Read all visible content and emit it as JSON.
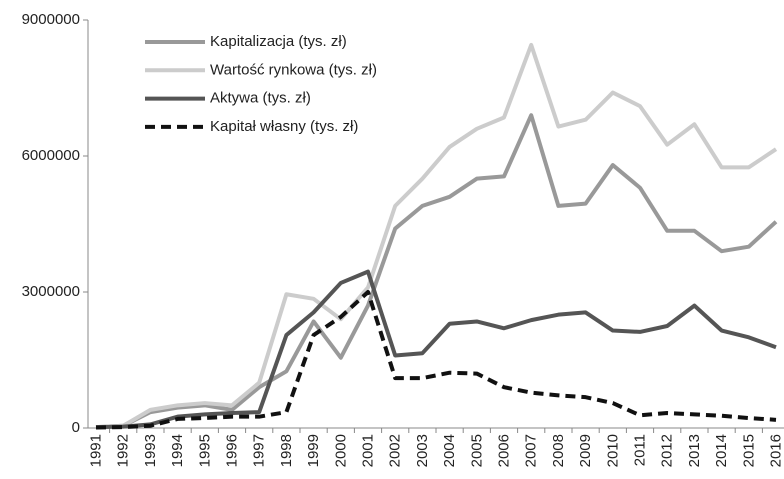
{
  "chart_data": {
    "type": "line",
    "categories": [
      "1991",
      "1992",
      "1993",
      "1994",
      "1995",
      "1996",
      "1997",
      "1998",
      "1999",
      "2000",
      "2001",
      "2002",
      "2003",
      "2004",
      "2005",
      "2006",
      "2007",
      "2008",
      "2009",
      "2010",
      "2011",
      "2012",
      "2013",
      "2014",
      "2015",
      "2016"
    ],
    "series": [
      {
        "name": "Kapitalizacja (tys. zł)",
        "color": "#999999",
        "dashed": false,
        "values": [
          20000,
          50000,
          350000,
          450000,
          500000,
          400000,
          900000,
          1250000,
          2350000,
          1550000,
          2700000,
          4400000,
          4900000,
          5100000,
          5500000,
          5550000,
          6900000,
          4900000,
          4950000,
          5800000,
          5300000,
          4350000,
          4350000,
          3900000,
          4000000,
          4550000
        ]
      },
      {
        "name": "Wartość rynkowa (tys. zł)",
        "color": "#cccccc",
        "dashed": false,
        "values": [
          20000,
          50000,
          400000,
          500000,
          550000,
          500000,
          1000000,
          2950000,
          2850000,
          2400000,
          3100000,
          4900000,
          5500000,
          6200000,
          6600000,
          6850000,
          8450000,
          6650000,
          6800000,
          7400000,
          7100000,
          6250000,
          6700000,
          5750000,
          5750000,
          6150000
        ]
      },
      {
        "name": "Aktywa (tys. zł)",
        "color": "#555555",
        "dashed": false,
        "values": [
          20000,
          30000,
          80000,
          250000,
          300000,
          330000,
          350000,
          2050000,
          2550000,
          3200000,
          3450000,
          1600000,
          1650000,
          2300000,
          2350000,
          2200000,
          2380000,
          2500000,
          2550000,
          2150000,
          2120000,
          2250000,
          2700000,
          2150000,
          2000000,
          1780000
        ]
      },
      {
        "name": "Kapitał własny (tys. zł)",
        "color": "#111111",
        "dashed": true,
        "values": [
          10000,
          20000,
          50000,
          200000,
          220000,
          250000,
          250000,
          350000,
          2050000,
          2450000,
          3000000,
          1100000,
          1100000,
          1220000,
          1200000,
          900000,
          780000,
          720000,
          680000,
          550000,
          280000,
          330000,
          300000,
          270000,
          220000,
          180000
        ]
      }
    ],
    "ylim": [
      0,
      9000000
    ],
    "yticks": [
      0,
      3000000,
      6000000,
      9000000
    ],
    "grid": false,
    "legend": "upper-left"
  }
}
